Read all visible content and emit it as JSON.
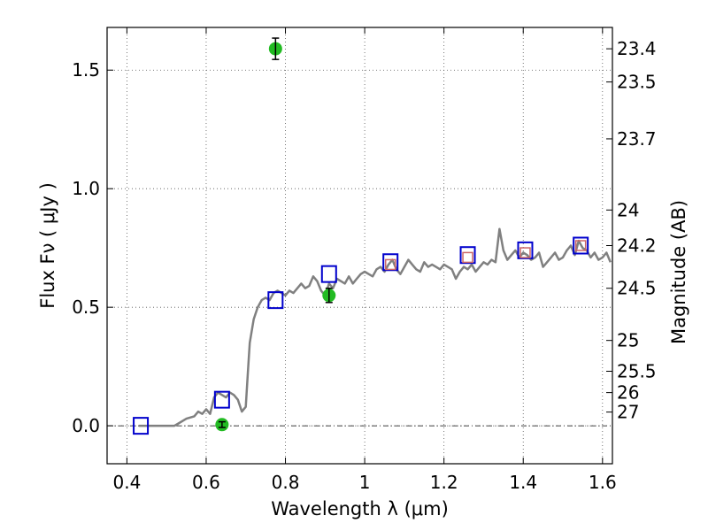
{
  "chart_data": {
    "type": "scatter",
    "xlabel": "Wavelength  λ (μm)",
    "ylabel": "Flux  Fν  ( μJy )",
    "y2label": "Magnitude (AB)",
    "xlim": [
      0.35,
      1.625
    ],
    "ylim": [
      -0.16,
      1.68
    ],
    "grid": true,
    "x_ticks": [
      0.4,
      0.6,
      0.8,
      1.0,
      1.2,
      1.4,
      1.6
    ],
    "x_tick_labels": [
      "0.4",
      "0.6",
      "0.8",
      "1",
      "1.2",
      "1.4",
      "1.6"
    ],
    "y_ticks": [
      0.0,
      0.5,
      1.0,
      1.5
    ],
    "y_tick_labels": [
      "0.0",
      "0.5",
      "1.0",
      "1.5"
    ],
    "y2_ticks": [
      {
        "label": "23.4",
        "flux": 1.59
      },
      {
        "label": "23.5",
        "flux": 1.45
      },
      {
        "label": "23.7",
        "flux": 1.21
      },
      {
        "label": "24",
        "flux": 0.91
      },
      {
        "label": "24.2",
        "flux": 0.76
      },
      {
        "label": "24.5",
        "flux": 0.58
      },
      {
        "label": "25",
        "flux": 0.36
      },
      {
        "label": "25.5",
        "flux": 0.23
      },
      {
        "label": "26",
        "flux": 0.14
      },
      {
        "label": "27",
        "flux": 0.058
      }
    ],
    "zero_line": 0.0,
    "series": [
      {
        "kind": "spectrum",
        "color": "#808080",
        "x": [
          0.43,
          0.46,
          0.49,
          0.52,
          0.53,
          0.55,
          0.57,
          0.58,
          0.59,
          0.6,
          0.61,
          0.62,
          0.63,
          0.64,
          0.65,
          0.66,
          0.67,
          0.68,
          0.69,
          0.7,
          0.705,
          0.71,
          0.72,
          0.73,
          0.74,
          0.75,
          0.76,
          0.77,
          0.78,
          0.79,
          0.8,
          0.81,
          0.82,
          0.83,
          0.84,
          0.85,
          0.86,
          0.87,
          0.88,
          0.89,
          0.9,
          0.91,
          0.92,
          0.93,
          0.94,
          0.95,
          0.96,
          0.97,
          0.98,
          0.99,
          1.0,
          1.01,
          1.02,
          1.03,
          1.04,
          1.05,
          1.06,
          1.07,
          1.08,
          1.09,
          1.1,
          1.11,
          1.12,
          1.13,
          1.14,
          1.15,
          1.16,
          1.17,
          1.18,
          1.19,
          1.2,
          1.21,
          1.22,
          1.23,
          1.24,
          1.25,
          1.26,
          1.27,
          1.28,
          1.29,
          1.3,
          1.31,
          1.32,
          1.33,
          1.34,
          1.35,
          1.36,
          1.37,
          1.38,
          1.39,
          1.4,
          1.41,
          1.42,
          1.43,
          1.44,
          1.45,
          1.46,
          1.47,
          1.48,
          1.49,
          1.5,
          1.51,
          1.52,
          1.53,
          1.54,
          1.55,
          1.56,
          1.57,
          1.58,
          1.59,
          1.6,
          1.61,
          1.62
        ],
        "y": [
          0.0,
          0.0,
          0.0,
          0.0,
          0.01,
          0.03,
          0.04,
          0.06,
          0.05,
          0.07,
          0.05,
          0.12,
          0.14,
          0.13,
          0.12,
          0.14,
          0.13,
          0.11,
          0.06,
          0.08,
          0.22,
          0.35,
          0.45,
          0.5,
          0.53,
          0.54,
          0.53,
          0.56,
          0.57,
          0.56,
          0.55,
          0.57,
          0.56,
          0.58,
          0.6,
          0.58,
          0.59,
          0.63,
          0.61,
          0.57,
          0.55,
          0.6,
          0.58,
          0.62,
          0.61,
          0.6,
          0.63,
          0.6,
          0.62,
          0.64,
          0.65,
          0.64,
          0.63,
          0.66,
          0.67,
          0.65,
          0.68,
          0.7,
          0.66,
          0.64,
          0.67,
          0.7,
          0.68,
          0.66,
          0.65,
          0.69,
          0.67,
          0.68,
          0.67,
          0.66,
          0.68,
          0.67,
          0.66,
          0.62,
          0.65,
          0.67,
          0.66,
          0.68,
          0.65,
          0.67,
          0.69,
          0.68,
          0.7,
          0.69,
          0.83,
          0.74,
          0.7,
          0.72,
          0.74,
          0.71,
          0.73,
          0.72,
          0.7,
          0.71,
          0.73,
          0.67,
          0.69,
          0.71,
          0.73,
          0.7,
          0.71,
          0.74,
          0.76,
          0.72,
          0.78,
          0.75,
          0.74,
          0.71,
          0.73,
          0.7,
          0.71,
          0.73,
          0.69
        ]
      },
      {
        "kind": "model_photometry",
        "marker": "square",
        "color": "#0000cc",
        "x": [
          0.435,
          0.64,
          0.775,
          0.91,
          1.065,
          1.26,
          1.405,
          1.545
        ],
        "y": [
          0.0,
          0.11,
          0.53,
          0.64,
          0.69,
          0.72,
          0.74,
          0.76
        ]
      },
      {
        "kind": "model_photometry_inner",
        "marker": "square",
        "color": "#cc6666",
        "x": [
          1.065,
          1.26,
          1.405,
          1.545
        ],
        "y": [
          0.68,
          0.71,
          0.73,
          0.76
        ]
      },
      {
        "kind": "observed",
        "marker": "circle",
        "color": "#22bb22",
        "x": [
          0.64,
          0.775,
          0.91
        ],
        "y": [
          0.005,
          1.59,
          0.55
        ],
        "yerr": [
          0.012,
          0.045,
          0.03
        ]
      }
    ]
  }
}
